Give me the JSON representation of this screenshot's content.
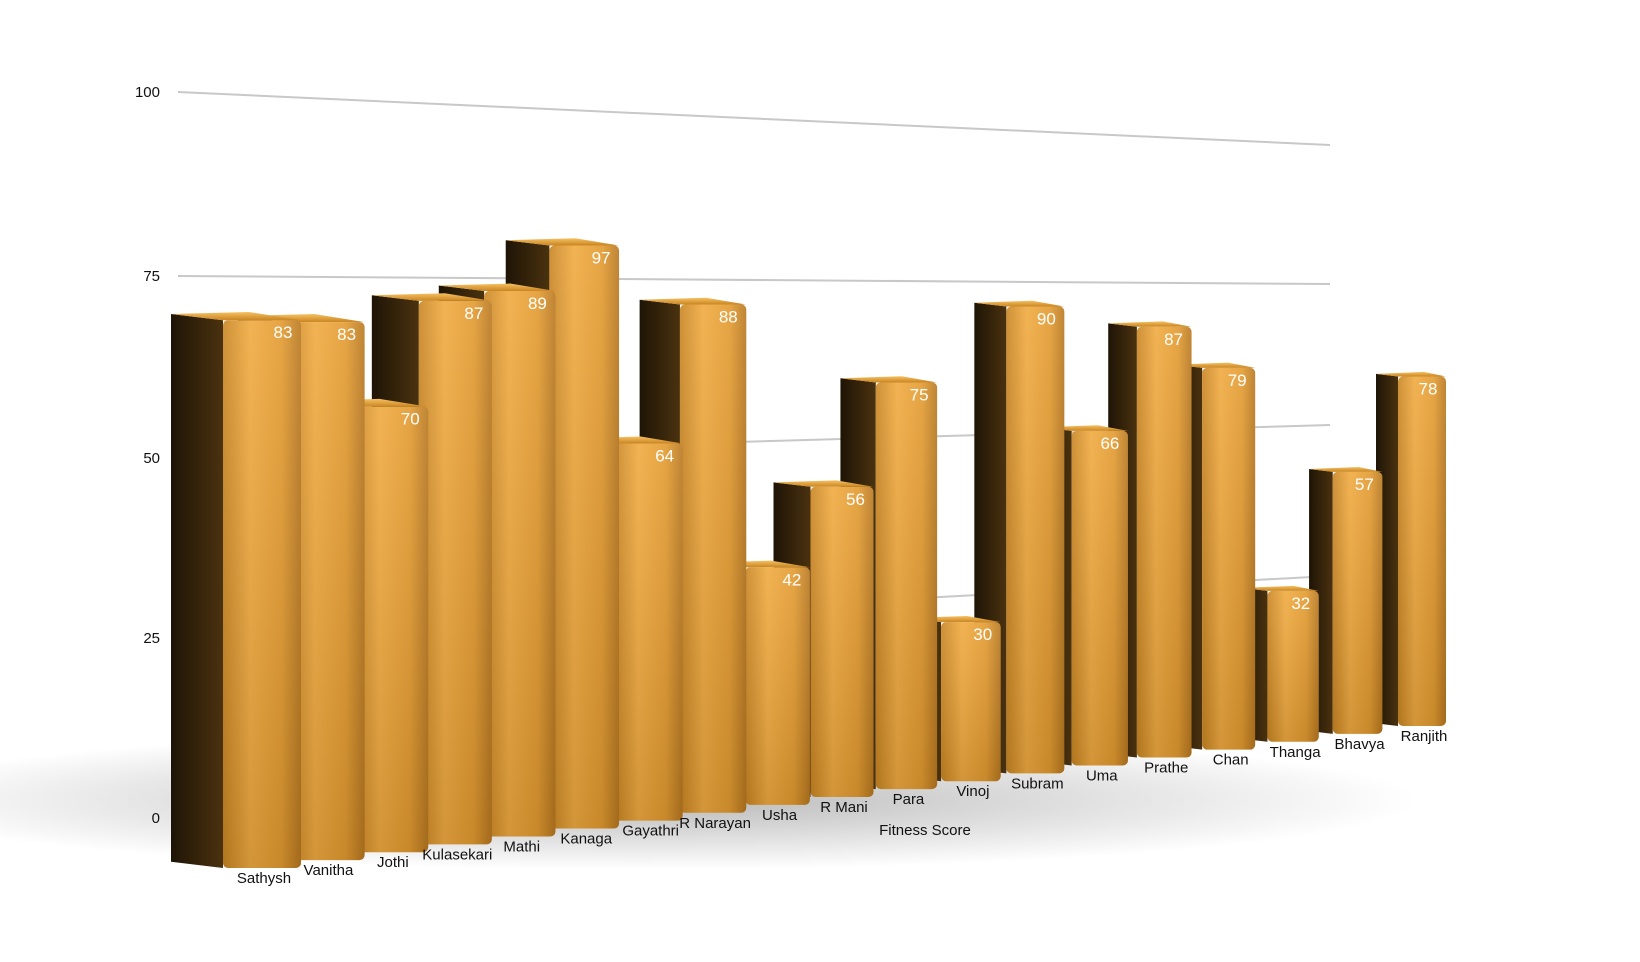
{
  "chart_data": {
    "type": "bar",
    "style": "3d-perspective",
    "categories": [
      "Sathysh",
      "Vanitha",
      "Jothi",
      "Kulasekari",
      "Mathi",
      "Kanaga",
      "Gayathri",
      "R Narayan",
      "Usha",
      "R Mani",
      "Para",
      "Vinoj",
      "Subram",
      "Uma",
      "Prathe",
      "Chan",
      "Thanga",
      "Bhavya",
      "Ranjith"
    ],
    "values": [
      83,
      83,
      70,
      87,
      89,
      97,
      64,
      88,
      42,
      56,
      75,
      30,
      90,
      66,
      87,
      79,
      32,
      57,
      78
    ],
    "xlabel": "Fitness Score",
    "ylim": [
      0,
      100
    ],
    "yticks": [
      0,
      25,
      50,
      75,
      100
    ],
    "grid": true,
    "data_labels": true,
    "colors": {
      "bar": "#e0982c",
      "bar_highlight": "#f2ad44",
      "bar_side": "#2b1c08",
      "grid": "#c8c8c8"
    }
  }
}
